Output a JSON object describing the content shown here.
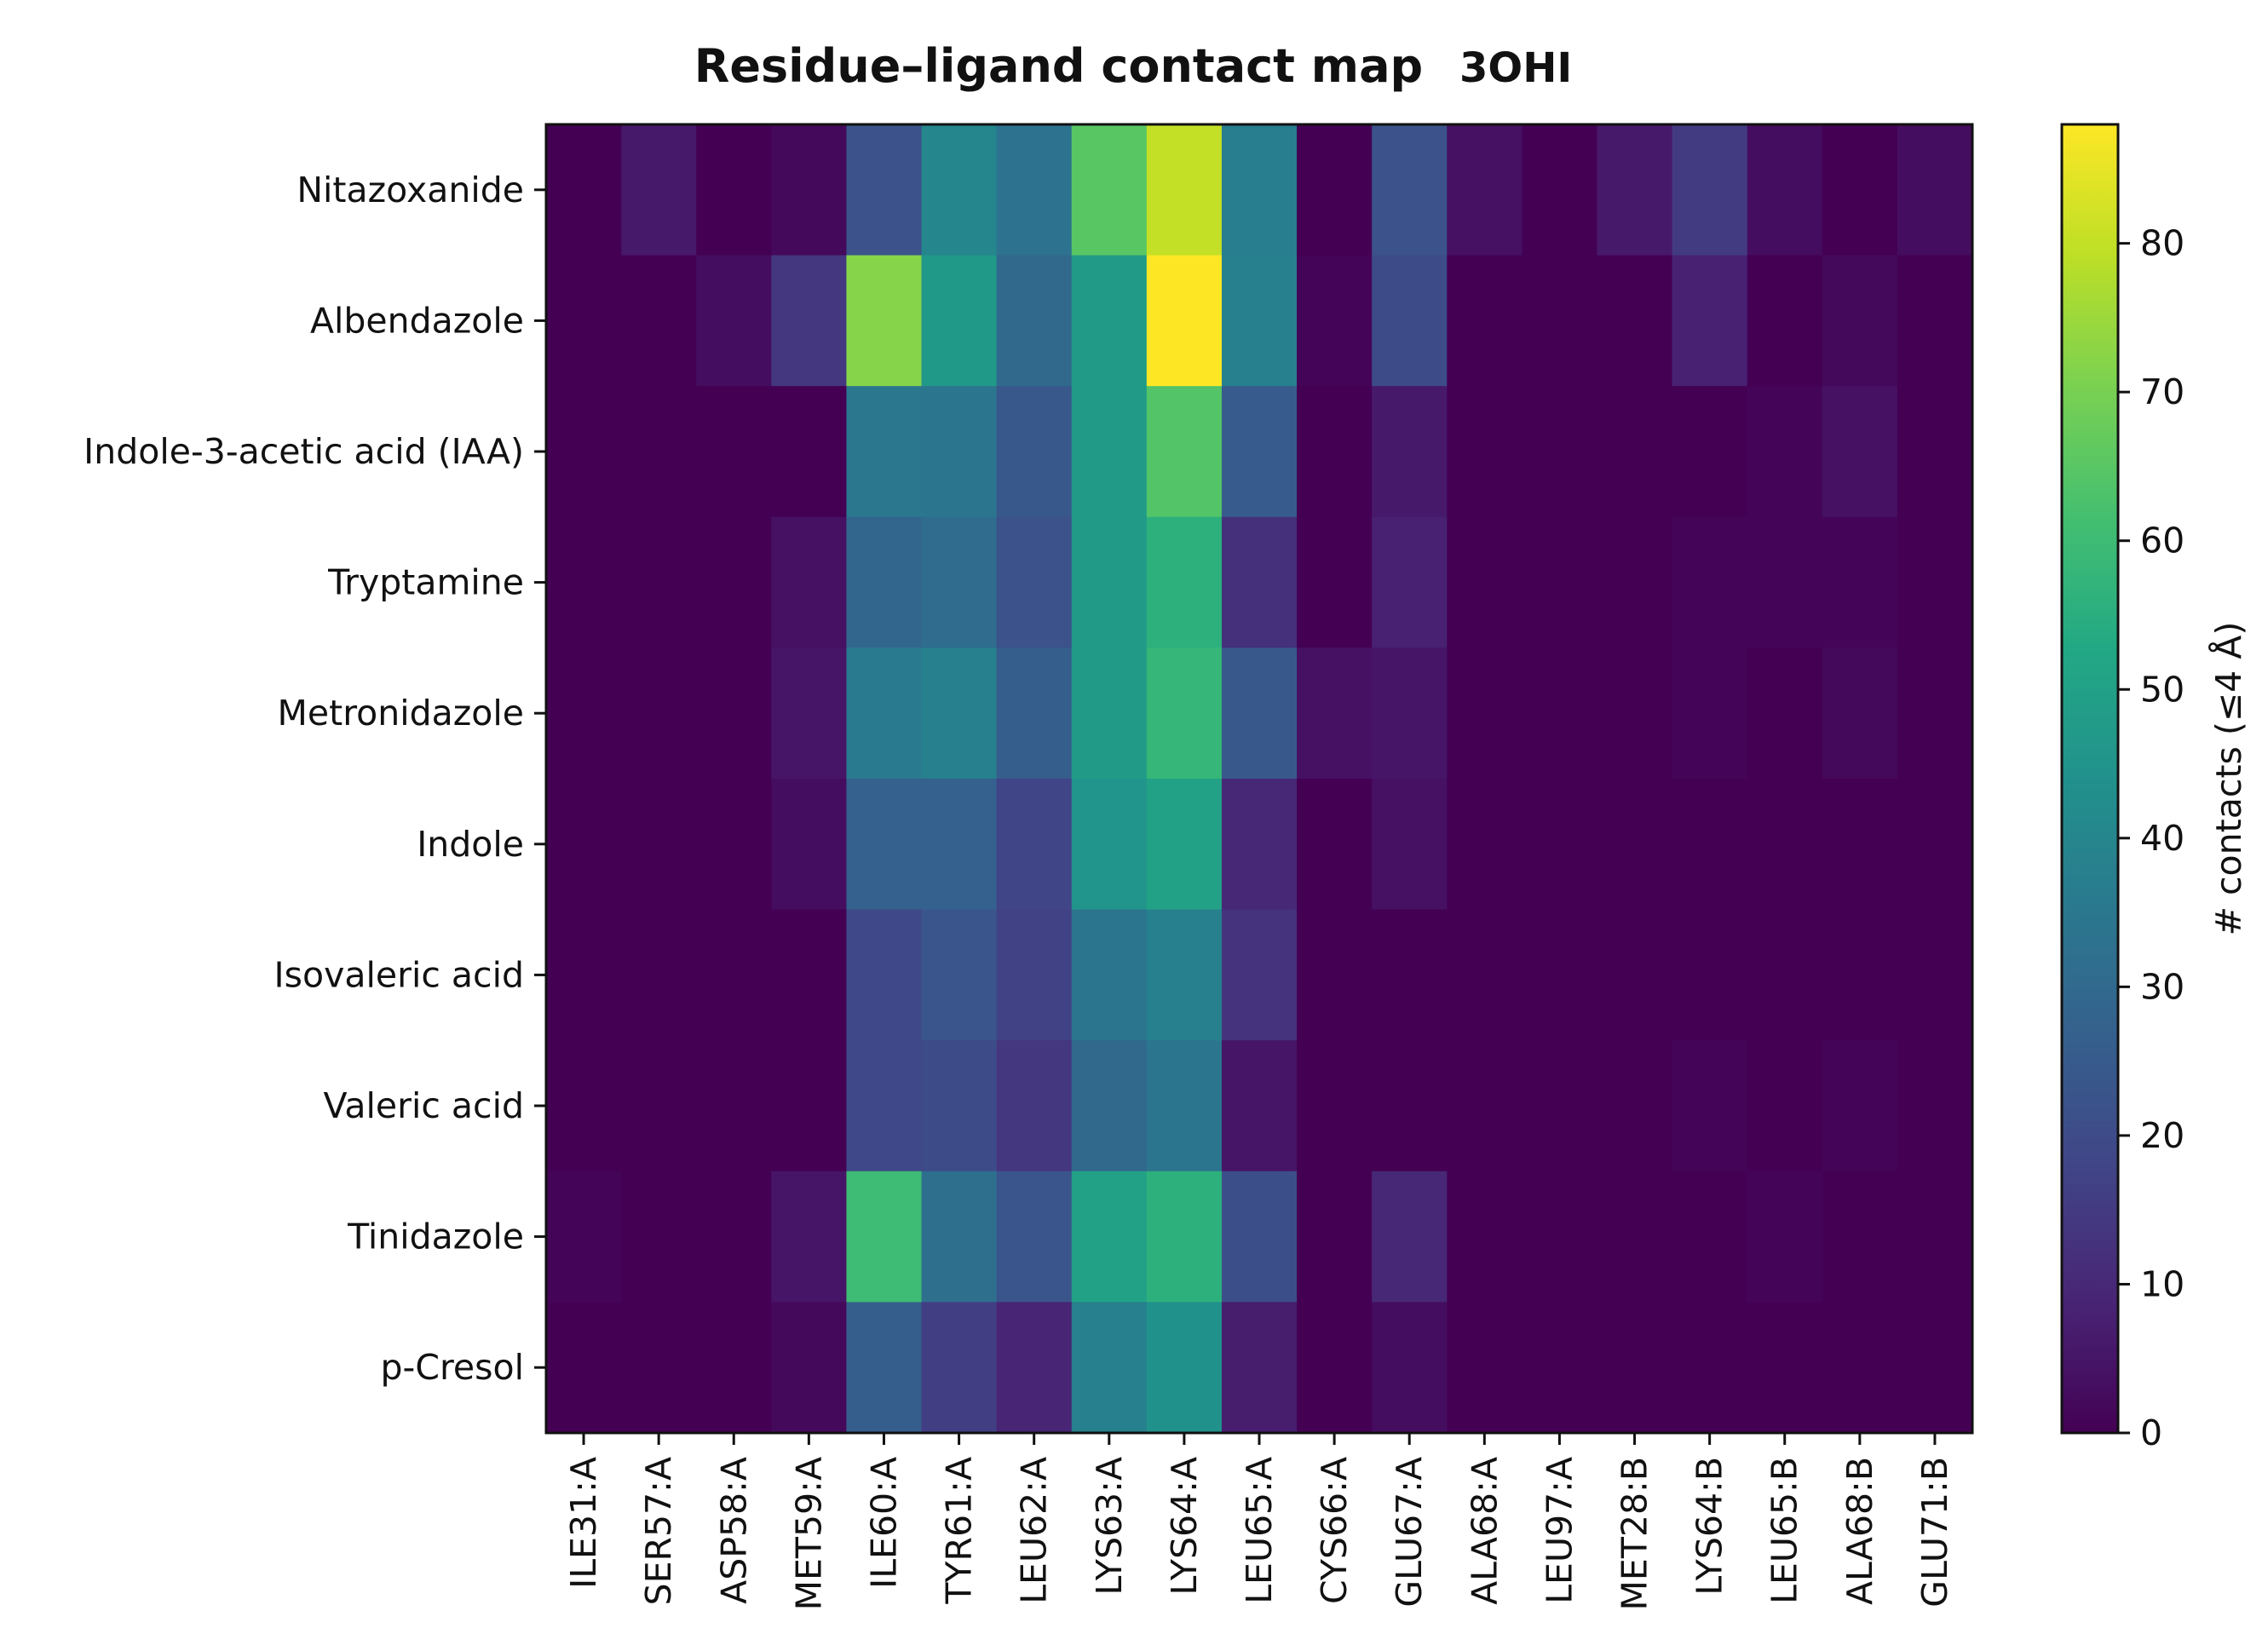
{
  "chart_data": {
    "type": "heatmap",
    "title": "Residue–ligand contact map",
    "subtitle": "3OHI",
    "xlabel": "",
    "ylabel": "",
    "x_categories": [
      "ILE31:A",
      "SER57:A",
      "ASP58:A",
      "MET59:A",
      "ILE60:A",
      "TYR61:A",
      "LEU62:A",
      "LYS63:A",
      "LYS64:A",
      "LEU65:A",
      "CYS66:A",
      "GLU67:A",
      "ALA68:A",
      "LEU97:A",
      "MET28:B",
      "LYS64:B",
      "LEU65:B",
      "ALA68:B",
      "GLU71:B"
    ],
    "y_categories": [
      "Nitazoxanide",
      "Albendazole",
      "Indole-3-acetic acid (IAA)",
      "Tryptamine",
      "Metronidazole",
      "Indole",
      "Isovaleric acid",
      "Valeric acid",
      "Tinidazole",
      "p-Cresol"
    ],
    "values": [
      [
        0,
        6,
        0,
        2,
        22,
        40,
        33,
        65,
        80,
        37,
        0,
        22,
        4,
        0,
        6,
        15,
        3,
        0,
        3
      ],
      [
        0,
        0,
        3,
        14,
        72,
        47,
        30,
        48,
        88,
        38,
        1,
        20,
        0,
        0,
        0,
        8,
        0,
        2,
        0
      ],
      [
        0,
        0,
        0,
        0,
        35,
        34,
        24,
        48,
        64,
        25,
        0,
        6,
        0,
        0,
        0,
        0,
        1,
        4,
        0
      ],
      [
        0,
        0,
        0,
        4,
        29,
        31,
        22,
        48,
        56,
        12,
        0,
        8,
        0,
        0,
        0,
        1,
        1,
        1,
        0
      ],
      [
        0,
        0,
        0,
        5,
        36,
        38,
        26,
        48,
        58,
        24,
        4,
        5,
        0,
        0,
        0,
        1,
        0,
        2,
        0
      ],
      [
        0,
        0,
        0,
        3,
        27,
        27,
        18,
        45,
        50,
        10,
        0,
        4,
        0,
        0,
        0,
        0,
        0,
        0,
        0
      ],
      [
        0,
        0,
        0,
        0,
        19,
        23,
        17,
        34,
        38,
        13,
        0,
        0,
        0,
        0,
        0,
        0,
        0,
        0,
        0
      ],
      [
        0,
        0,
        0,
        0,
        19,
        20,
        14,
        30,
        34,
        5,
        0,
        0,
        0,
        0,
        0,
        1,
        0,
        1,
        0
      ],
      [
        1,
        0,
        0,
        5,
        60,
        32,
        23,
        50,
        56,
        21,
        0,
        10,
        0,
        0,
        0,
        0,
        1,
        0,
        0
      ],
      [
        0,
        0,
        0,
        2,
        26,
        16,
        9,
        38,
        44,
        7,
        0,
        3,
        0,
        0,
        0,
        0,
        0,
        0,
        0
      ]
    ],
    "colormap": "viridis",
    "vmin": 0,
    "vmax": 88,
    "colorbar": {
      "label": "# contacts  (≤4 Å)",
      "ticks": [
        0,
        10,
        20,
        30,
        40,
        50,
        60,
        70,
        80
      ],
      "tick_labels": [
        "0",
        "10",
        "20",
        "30",
        "40",
        "50",
        "60",
        "70",
        "80"
      ]
    }
  }
}
